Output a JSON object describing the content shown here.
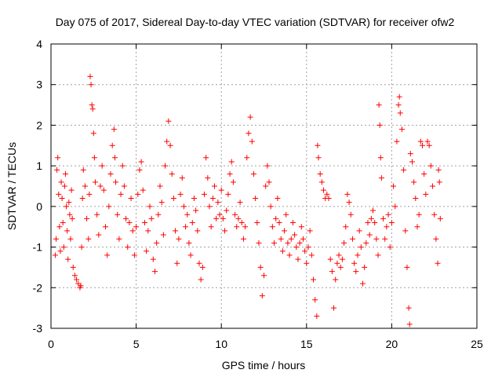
{
  "chart_data": {
    "type": "scatter",
    "title": "Day 075 of 2017, Sidereal Day-to-day VTEC variation (SDTVAR) for receiver ofw2",
    "xlabel": "GPS time / hours",
    "ylabel": "SDTVAR / TECUs",
    "xlim": [
      0,
      25
    ],
    "ylim": [
      -3,
      4
    ],
    "xticks": [
      0,
      5,
      10,
      15,
      20,
      25
    ],
    "yticks": [
      -3,
      -2,
      -1,
      0,
      1,
      2,
      3,
      4
    ],
    "grid": true,
    "marker": "plus",
    "series_color": "#ff0000",
    "series": [
      {
        "name": "ofw2",
        "points": [
          [
            0.25,
            -1.2
          ],
          [
            0.3,
            -0.8
          ],
          [
            0.35,
            0.9
          ],
          [
            0.4,
            1.2
          ],
          [
            0.45,
            0.3
          ],
          [
            0.5,
            -0.5
          ],
          [
            0.55,
            -1.1
          ],
          [
            0.6,
            0.6
          ],
          [
            0.65,
            0.2
          ],
          [
            0.7,
            -0.4
          ],
          [
            0.75,
            -1.0
          ],
          [
            0.8,
            0.5
          ],
          [
            0.85,
            0.8
          ],
          [
            0.9,
            0.0
          ],
          [
            0.95,
            -0.6
          ],
          [
            1.0,
            -1.3
          ],
          [
            1.05,
            0.1
          ],
          [
            1.1,
            -0.2
          ],
          [
            1.15,
            -0.8
          ],
          [
            1.2,
            0.4
          ],
          [
            1.25,
            -0.3
          ],
          [
            1.3,
            -1.5
          ],
          [
            1.4,
            -1.7
          ],
          [
            1.5,
            -1.8
          ],
          [
            1.6,
            -1.9
          ],
          [
            1.7,
            -2.0
          ],
          [
            1.75,
            -1.95
          ],
          [
            1.8,
            -1.0
          ],
          [
            1.85,
            0.2
          ],
          [
            1.9,
            0.9
          ],
          [
            2.0,
            0.5
          ],
          [
            2.1,
            -0.3
          ],
          [
            2.2,
            -0.8
          ],
          [
            2.25,
            0.3
          ],
          [
            2.3,
            3.2
          ],
          [
            2.35,
            3.0
          ],
          [
            2.4,
            2.5
          ],
          [
            2.45,
            2.4
          ],
          [
            2.5,
            1.8
          ],
          [
            2.55,
            1.2
          ],
          [
            2.6,
            0.6
          ],
          [
            2.7,
            -0.2
          ],
          [
            2.8,
            -0.7
          ],
          [
            2.9,
            0.5
          ],
          [
            3.0,
            1.0
          ],
          [
            3.1,
            0.4
          ],
          [
            3.2,
            -0.5
          ],
          [
            3.3,
            -1.2
          ],
          [
            3.4,
            0.0
          ],
          [
            3.5,
            0.8
          ],
          [
            3.6,
            1.5
          ],
          [
            3.7,
            1.9
          ],
          [
            3.75,
            1.2
          ],
          [
            3.8,
            0.6
          ],
          [
            3.9,
            -0.2
          ],
          [
            4.0,
            -0.8
          ],
          [
            4.1,
            0.3
          ],
          [
            4.2,
            1.0
          ],
          [
            4.3,
            0.5
          ],
          [
            4.4,
            -0.3
          ],
          [
            4.5,
            -1.0
          ],
          [
            4.6,
            -0.4
          ],
          [
            4.7,
            0.2
          ],
          [
            4.8,
            -0.6
          ],
          [
            4.9,
            -1.2
          ],
          [
            5.0,
            -0.5
          ],
          [
            5.1,
            0.3
          ],
          [
            5.2,
            0.9
          ],
          [
            5.3,
            1.1
          ],
          [
            5.4,
            0.4
          ],
          [
            5.5,
            -0.4
          ],
          [
            5.6,
            -1.1
          ],
          [
            5.7,
            -0.6
          ],
          [
            5.8,
            0.0
          ],
          [
            5.9,
            -0.3
          ],
          [
            6.0,
            -1.3
          ],
          [
            6.1,
            -1.6
          ],
          [
            6.2,
            -0.9
          ],
          [
            6.3,
            -0.2
          ],
          [
            6.4,
            0.5
          ],
          [
            6.5,
            0.1
          ],
          [
            6.6,
            -0.7
          ],
          [
            6.7,
            1.0
          ],
          [
            6.8,
            1.6
          ],
          [
            6.9,
            2.1
          ],
          [
            7.0,
            1.5
          ],
          [
            7.1,
            0.8
          ],
          [
            7.2,
            0.2
          ],
          [
            7.3,
            -0.6
          ],
          [
            7.4,
            -1.4
          ],
          [
            7.5,
            -0.8
          ],
          [
            7.6,
            0.3
          ],
          [
            7.7,
            0.7
          ],
          [
            7.8,
            0.0
          ],
          [
            7.9,
            -0.5
          ],
          [
            8.0,
            -0.2
          ],
          [
            8.1,
            -0.9
          ],
          [
            8.2,
            -1.2
          ],
          [
            8.3,
            -0.4
          ],
          [
            8.4,
            0.2
          ],
          [
            8.5,
            -0.1
          ],
          [
            8.6,
            -0.6
          ],
          [
            8.7,
            -1.4
          ],
          [
            8.8,
            -1.8
          ],
          [
            8.9,
            -1.5
          ],
          [
            9.0,
            0.3
          ],
          [
            9.1,
            1.2
          ],
          [
            9.2,
            0.7
          ],
          [
            9.3,
            0.0
          ],
          [
            9.4,
            -0.5
          ],
          [
            9.5,
            0.2
          ],
          [
            9.6,
            0.5
          ],
          [
            9.7,
            -0.3
          ],
          [
            9.8,
            0.1
          ],
          [
            9.9,
            -0.2
          ],
          [
            10.0,
            0.4
          ],
          [
            10.1,
            -0.3
          ],
          [
            10.2,
            -0.6
          ],
          [
            10.3,
            -0.1
          ],
          [
            10.4,
            0.3
          ],
          [
            10.5,
            0.8
          ],
          [
            10.6,
            1.1
          ],
          [
            10.7,
            0.6
          ],
          [
            10.8,
            -0.2
          ],
          [
            10.9,
            -0.5
          ],
          [
            11.0,
            -0.3
          ],
          [
            11.1,
            0.1
          ],
          [
            11.2,
            -0.4
          ],
          [
            11.3,
            -0.8
          ],
          [
            11.4,
            -0.5
          ],
          [
            11.5,
            1.2
          ],
          [
            11.6,
            1.8
          ],
          [
            11.7,
            2.2
          ],
          [
            11.8,
            1.6
          ],
          [
            11.9,
            0.8
          ],
          [
            12.0,
            0.2
          ],
          [
            12.1,
            -0.4
          ],
          [
            12.2,
            -0.9
          ],
          [
            12.3,
            -1.5
          ],
          [
            12.4,
            -2.2
          ],
          [
            12.5,
            -1.7
          ],
          [
            12.6,
            0.5
          ],
          [
            12.7,
            1.0
          ],
          [
            12.8,
            0.6
          ],
          [
            12.9,
            0.0
          ],
          [
            13.0,
            -0.5
          ],
          [
            13.1,
            -0.9
          ],
          [
            13.2,
            -0.3
          ],
          [
            13.3,
            0.2
          ],
          [
            13.4,
            -0.4
          ],
          [
            13.5,
            -0.8
          ],
          [
            13.6,
            -1.1
          ],
          [
            13.7,
            -0.6
          ],
          [
            13.8,
            -0.2
          ],
          [
            13.9,
            -0.9
          ],
          [
            14.0,
            -1.2
          ],
          [
            14.1,
            -0.8
          ],
          [
            14.2,
            -0.4
          ],
          [
            14.3,
            -0.7
          ],
          [
            14.4,
            -1.0
          ],
          [
            14.5,
            -1.3
          ],
          [
            14.6,
            -0.9
          ],
          [
            14.7,
            -0.5
          ],
          [
            14.8,
            -0.8
          ],
          [
            14.9,
            -1.1
          ],
          [
            15.0,
            -1.4
          ],
          [
            15.1,
            -1.0
          ],
          [
            15.2,
            -0.6
          ],
          [
            15.3,
            -1.2
          ],
          [
            15.4,
            -1.8
          ],
          [
            15.5,
            -2.3
          ],
          [
            15.6,
            -2.7
          ],
          [
            15.65,
            1.5
          ],
          [
            15.7,
            1.2
          ],
          [
            15.8,
            0.8
          ],
          [
            15.9,
            0.6
          ],
          [
            16.0,
            0.4
          ],
          [
            16.1,
            0.2
          ],
          [
            16.2,
            0.3
          ],
          [
            16.3,
            0.2
          ],
          [
            16.4,
            -1.3
          ],
          [
            16.5,
            -1.6
          ],
          [
            16.6,
            -2.5
          ],
          [
            16.7,
            -1.8
          ],
          [
            16.8,
            -1.4
          ],
          [
            16.9,
            -1.2
          ],
          [
            17.0,
            -1.5
          ],
          [
            17.1,
            -1.3
          ],
          [
            17.2,
            -0.9
          ],
          [
            17.3,
            -0.5
          ],
          [
            17.4,
            0.3
          ],
          [
            17.5,
            0.1
          ],
          [
            17.6,
            -0.2
          ],
          [
            17.7,
            -0.8
          ],
          [
            17.8,
            -1.4
          ],
          [
            17.9,
            -1.6
          ],
          [
            18.0,
            -1.2
          ],
          [
            18.1,
            -0.6
          ],
          [
            18.2,
            -1.0
          ],
          [
            18.3,
            -1.9
          ],
          [
            18.4,
            -1.5
          ],
          [
            18.5,
            -0.9
          ],
          [
            18.6,
            -0.4
          ],
          [
            18.7,
            -0.7
          ],
          [
            18.8,
            -0.3
          ],
          [
            18.9,
            -0.1
          ],
          [
            19.0,
            -0.4
          ],
          [
            19.1,
            -0.8
          ],
          [
            19.2,
            -1.2
          ],
          [
            19.25,
            2.5
          ],
          [
            19.3,
            2.0
          ],
          [
            19.35,
            1.2
          ],
          [
            19.4,
            0.7
          ],
          [
            19.5,
            -0.3
          ],
          [
            19.6,
            -0.8
          ],
          [
            19.7,
            -0.5
          ],
          [
            19.8,
            -0.2
          ],
          [
            19.9,
            -1.0
          ],
          [
            20.0,
            -0.4
          ],
          [
            20.1,
            0.5
          ],
          [
            20.2,
            0.0
          ],
          [
            20.3,
            1.6
          ],
          [
            20.4,
            2.5
          ],
          [
            20.45,
            2.7
          ],
          [
            20.5,
            2.3
          ],
          [
            20.6,
            1.9
          ],
          [
            20.7,
            0.9
          ],
          [
            20.8,
            -0.6
          ],
          [
            20.9,
            -1.5
          ],
          [
            21.0,
            -2.5
          ],
          [
            21.05,
            -2.9
          ],
          [
            21.1,
            1.3
          ],
          [
            21.2,
            1.1
          ],
          [
            21.3,
            0.6
          ],
          [
            21.4,
            0.2
          ],
          [
            21.5,
            -0.5
          ],
          [
            21.6,
            -0.2
          ],
          [
            21.7,
            1.6
          ],
          [
            21.8,
            1.5
          ],
          [
            21.9,
            0.8
          ],
          [
            22.0,
            0.3
          ],
          [
            22.1,
            1.6
          ],
          [
            22.2,
            1.5
          ],
          [
            22.3,
            1.0
          ],
          [
            22.4,
            0.5
          ],
          [
            22.5,
            -0.2
          ],
          [
            22.6,
            -0.8
          ],
          [
            22.7,
            -1.4
          ],
          [
            22.75,
            0.9
          ],
          [
            22.8,
            0.6
          ],
          [
            22.85,
            -0.3
          ]
        ]
      }
    ]
  }
}
